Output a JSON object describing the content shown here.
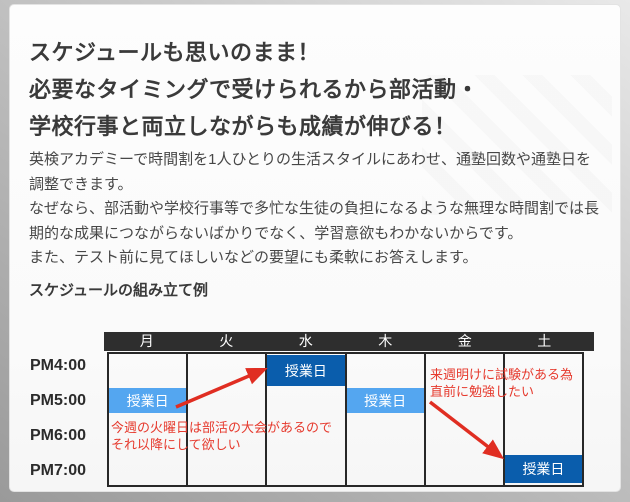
{
  "page": {
    "heading": "スケジュールも思いのまま！\n必要なタイミングで受けられるから部活動・\n学校行事と両立しながらも成績が伸びる！",
    "paragraph": "英検アカデミーで時間割を1人ひとりの生活スタイルにあわせ、通塾回数や通塾日を調整できます。\nなぜなら、部活動や学校行事等で多忙な生徒の負担になるような無理な時間割では長期的な成果につながらないばかりでなく、学習意欲もわかないからです。\nまた、テスト前に見てほしいなどの要望にも柔軟にお答えします。",
    "schedule_title": "スケジュールの組み立て例"
  },
  "schedule": {
    "days": [
      "月",
      "火",
      "水",
      "木",
      "金",
      "土"
    ],
    "times": [
      "PM4:00",
      "PM5:00",
      "PM6:00",
      "PM7:00"
    ],
    "lesson_label": "授業日",
    "cells": [
      {
        "day": "月",
        "time": "PM5:00",
        "tone": "light"
      },
      {
        "day": "水",
        "time": "PM4:00",
        "tone": "dark"
      },
      {
        "day": "木",
        "time": "PM5:00",
        "tone": "light"
      },
      {
        "day": "土",
        "time": "PM7:00",
        "tone": "dark"
      }
    ],
    "notes": [
      {
        "text": "今週の火曜日は部活の大会があるので\nそれ以降にして欲しい"
      },
      {
        "text": "来週明けに試験がある為\n直前に勉強したい"
      }
    ],
    "colors": {
      "light_blue": "#54a6f0",
      "dark_blue": "#0a5dac",
      "header_bg": "#2e2e2e",
      "note_red": "#e63a2e"
    }
  }
}
